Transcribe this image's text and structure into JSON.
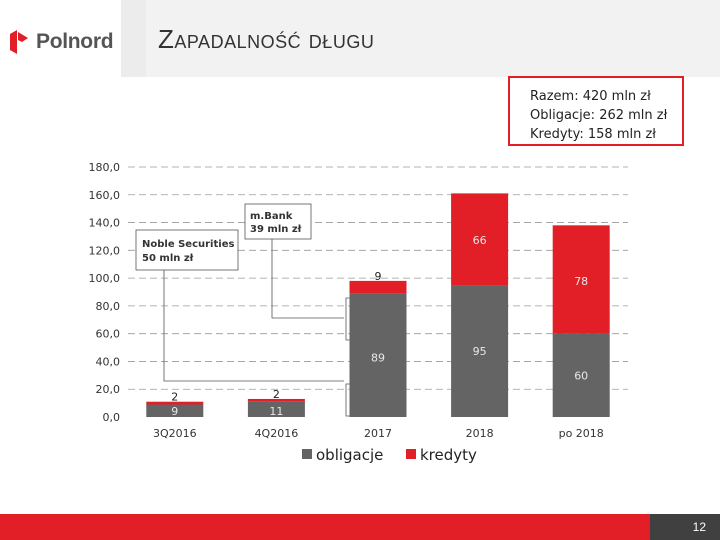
{
  "header": {
    "logo_text": "Polnord",
    "title": "Zapadalność długu"
  },
  "summary": {
    "total": "Razem: 420 mln zł",
    "bonds": "Obligacje: 262 mln zł",
    "loans": "Kredyty: 158 mln zł"
  },
  "colors": {
    "bonds": "#646464",
    "loans": "#e21e26",
    "accent": "#e21e26"
  },
  "chart_data": {
    "type": "bar",
    "stacked": true,
    "categories": [
      "3Q2016",
      "4Q2016",
      "2017",
      "2018",
      "po 2018"
    ],
    "series": [
      {
        "name": "obligacje",
        "values": [
          9,
          11,
          89,
          95,
          60
        ],
        "labels": [
          "9",
          "11",
          "89",
          "95",
          "60"
        ]
      },
      {
        "name": "kredyty",
        "values": [
          2,
          2,
          9,
          66,
          78
        ],
        "labels": [
          "2",
          "2",
          "9",
          "66",
          "78"
        ]
      }
    ],
    "ylim": [
      0,
      180
    ],
    "yticks": [
      "0,0",
      "20,0",
      "40,0",
      "60,0",
      "80,0",
      "100,0",
      "120,0",
      "140,0",
      "160,0",
      "180,0"
    ],
    "grid": "dashed",
    "legend": "bottom",
    "annotations": [
      {
        "line1": "Noble Securities",
        "line2": "50 mln zł"
      },
      {
        "line1": "m.Bank",
        "line2": "39 mln zł"
      }
    ]
  },
  "footer": {
    "page_number": "12"
  }
}
